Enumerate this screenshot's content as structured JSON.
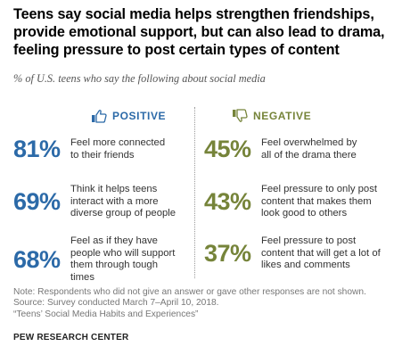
{
  "title": "Teens say social media helps strengthen friendships, provide emotional support, but can also lead to drama, feeling pressure to post certain types of content",
  "subtitle": "% of U.S. teens who say the following about social media",
  "colors": {
    "positive": "#2c6aa8",
    "negative": "#76843a"
  },
  "chart_data": {
    "type": "table",
    "groups": [
      {
        "name": "POSITIVE",
        "icon": "thumbs-up-icon",
        "items": [
          {
            "value": 81,
            "label": "81%",
            "text": "Feel more connected to their friends"
          },
          {
            "value": 69,
            "label": "69%",
            "text": "Think it helps teens interact with a more diverse group of people"
          },
          {
            "value": 68,
            "label": "68%",
            "text": "Feel as if they have people who will support them through tough times"
          }
        ]
      },
      {
        "name": "NEGATIVE",
        "icon": "thumbs-down-icon",
        "items": [
          {
            "value": 45,
            "label": "45%",
            "text": "Feel overwhelmed by all of the drama there"
          },
          {
            "value": 43,
            "label": "43%",
            "text": "Feel pressure to only post content that makes them look good to others"
          },
          {
            "value": 37,
            "label": "37%",
            "text": "Feel pressure to post content that will get a lot of likes and comments"
          }
        ]
      }
    ]
  },
  "notes": [
    "Note: Respondents who did not give an answer or gave other responses are not shown.",
    "Source: Survey conducted March 7–April 10, 2018.",
    "“Teens’ Social Media Habits and Experiences”"
  ],
  "credit": "PEW RESEARCH CENTER"
}
